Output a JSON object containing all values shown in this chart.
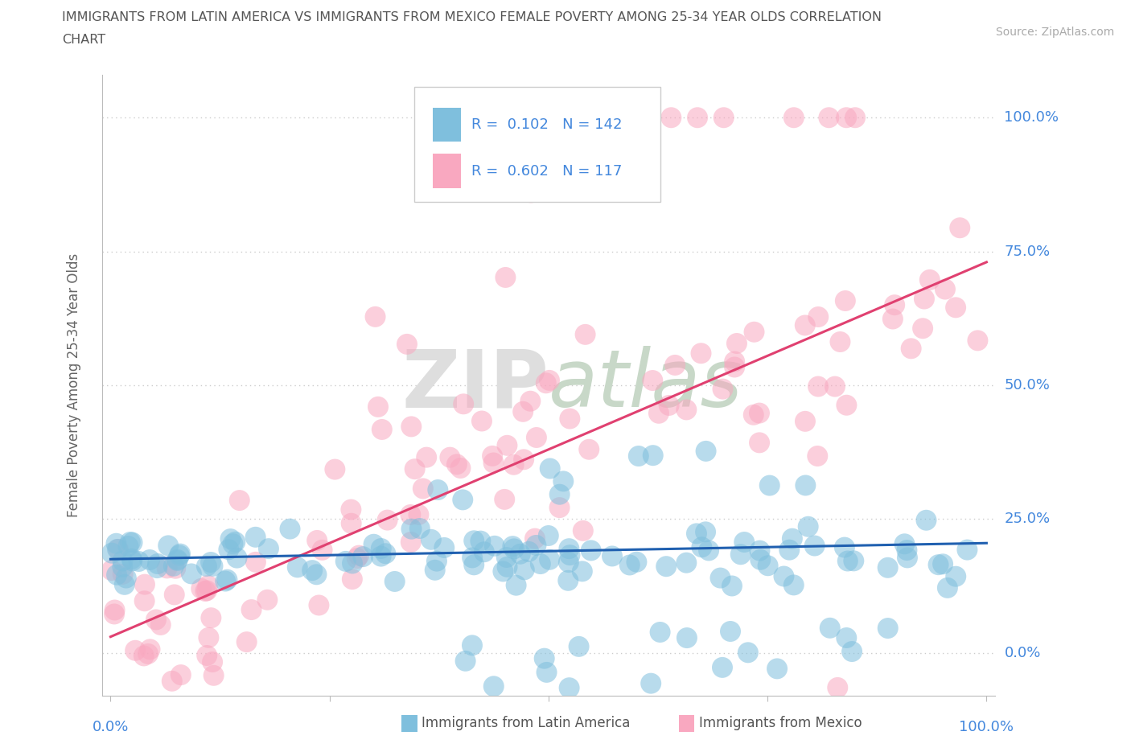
{
  "title_line1": "IMMIGRANTS FROM LATIN AMERICA VS IMMIGRANTS FROM MEXICO FEMALE POVERTY AMONG 25-34 YEAR OLDS CORRELATION",
  "title_line2": "CHART",
  "source_text": "Source: ZipAtlas.com",
  "ylabel": "Female Poverty Among 25-34 Year Olds",
  "ytick_values": [
    0.0,
    0.25,
    0.5,
    0.75,
    1.0
  ],
  "ytick_labels": [
    "0.0%",
    "25.0%",
    "50.0%",
    "75.0%",
    "100.0%"
  ],
  "xlim": [
    -0.01,
    1.01
  ],
  "ylim": [
    -0.08,
    1.08
  ],
  "legend_latin_r": "0.102",
  "legend_latin_n": "142",
  "legend_mexico_r": "0.602",
  "legend_mexico_n": "117",
  "color_latin": "#7fbfdd",
  "color_mexico": "#f9a8c0",
  "color_latin_line": "#2060b0",
  "color_mexico_line": "#e04070",
  "watermark_color": "#dedede",
  "background_color": "#ffffff",
  "grid_color": "#cccccc",
  "title_color": "#555555",
  "axis_label_color": "#4488dd",
  "legend_label_latin": "Immigrants from Latin America",
  "legend_label_mexico": "Immigrants from Mexico",
  "blue_line_x": [
    0.0,
    1.0
  ],
  "blue_line_y": [
    0.175,
    0.205
  ],
  "pink_line_x": [
    0.0,
    1.0
  ],
  "pink_line_y": [
    0.03,
    0.73
  ]
}
